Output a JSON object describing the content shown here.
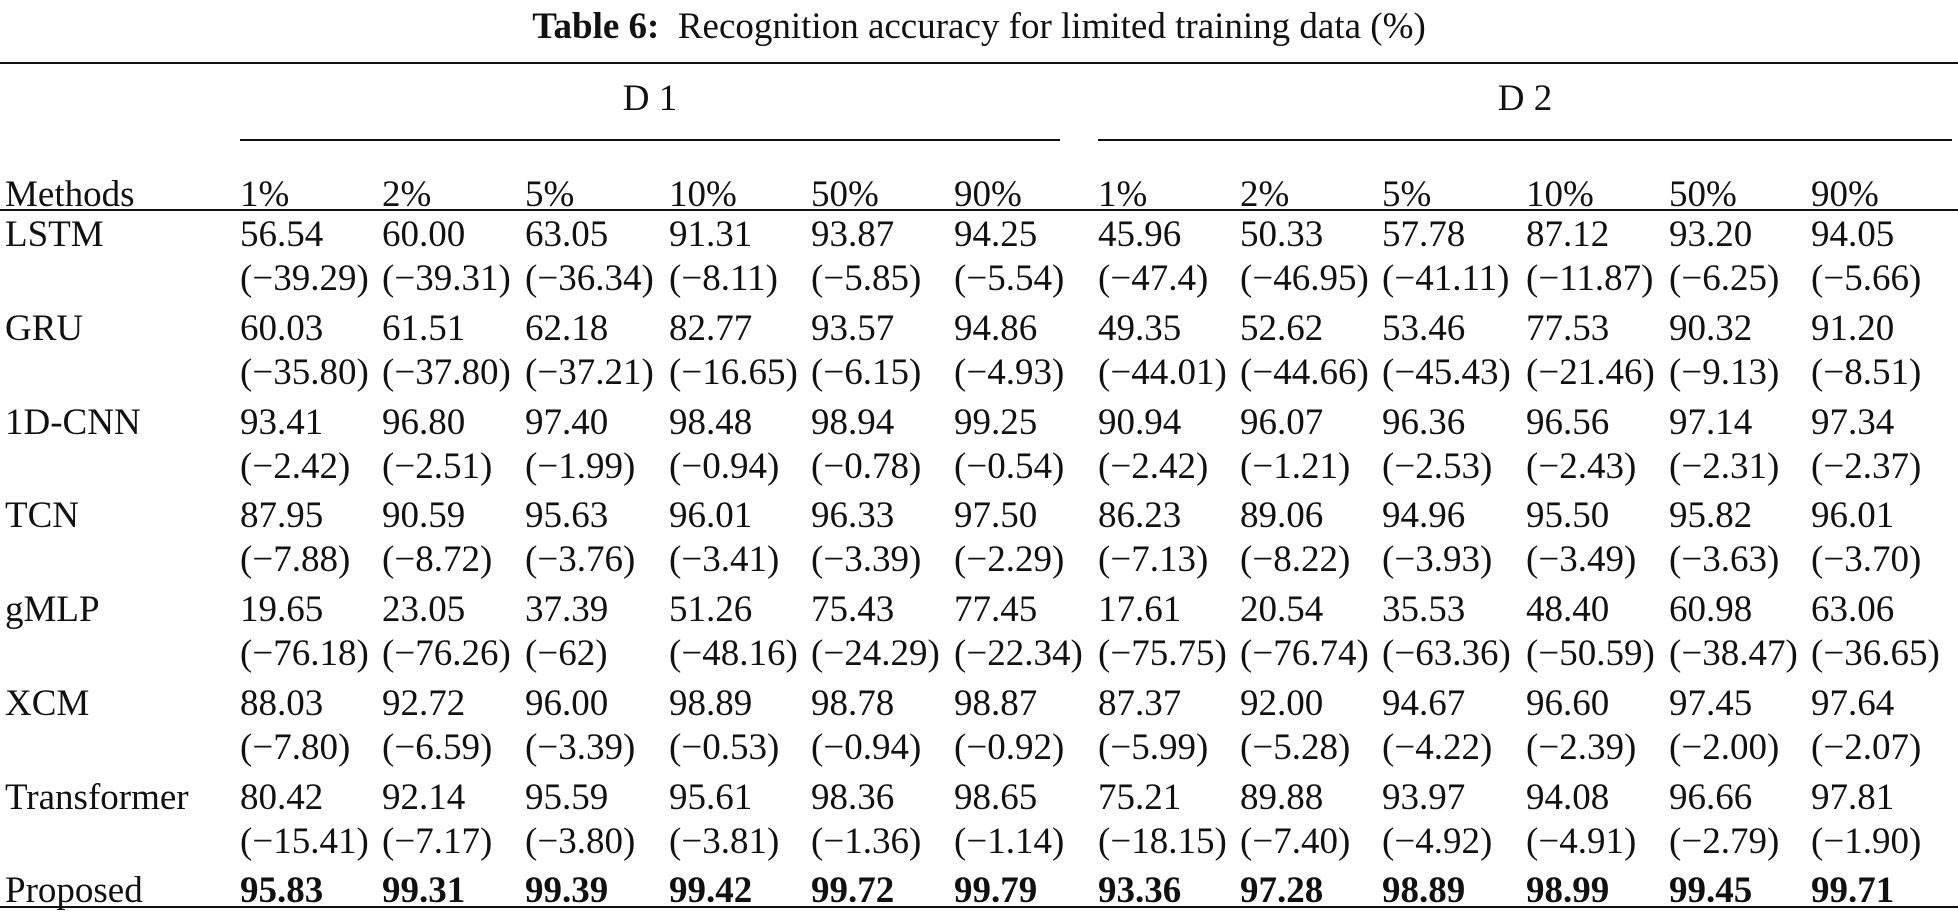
{
  "table": {
    "caption_label": "Table 6:",
    "caption_text": "Recognition accuracy for limited training data (%)",
    "groups": [
      "D 1",
      "D 2"
    ],
    "method_header": "Methods",
    "columns": [
      "1%",
      "2%",
      "5%",
      "10%",
      "50%",
      "90%",
      "1%",
      "2%",
      "5%",
      "10%",
      "50%",
      "90%"
    ],
    "rows": [
      {
        "method": "LSTM",
        "values": [
          "56.54",
          "60.00",
          "63.05",
          "91.31",
          "93.87",
          "94.25",
          "45.96",
          "50.33",
          "57.78",
          "87.12",
          "93.20",
          "94.05"
        ],
        "diffs": [
          "(−39.29)",
          "(−39.31)",
          "(−36.34)",
          "(−8.11)",
          "(−5.85)",
          "(−5.54)",
          "(−47.4)",
          "(−46.95)",
          "(−41.11)",
          "(−11.87)",
          "(−6.25)",
          "(−5.66)"
        ]
      },
      {
        "method": "GRU",
        "values": [
          "60.03",
          "61.51",
          "62.18",
          "82.77",
          "93.57",
          "94.86",
          "49.35",
          "52.62",
          "53.46",
          "77.53",
          "90.32",
          "91.20"
        ],
        "diffs": [
          "(−35.80)",
          "(−37.80)",
          "(−37.21)",
          "(−16.65)",
          "(−6.15)",
          "(−4.93)",
          "(−44.01)",
          "(−44.66)",
          "(−45.43)",
          "(−21.46)",
          "(−9.13)",
          "(−8.51)"
        ]
      },
      {
        "method": "1D-CNN",
        "values": [
          "93.41",
          "96.80",
          "97.40",
          "98.48",
          "98.94",
          "99.25",
          "90.94",
          "96.07",
          "96.36",
          "96.56",
          "97.14",
          "97.34"
        ],
        "diffs": [
          "(−2.42)",
          "(−2.51)",
          "(−1.99)",
          "(−0.94)",
          "(−0.78)",
          "(−0.54)",
          "(−2.42)",
          "(−1.21)",
          "(−2.53)",
          "(−2.43)",
          "(−2.31)",
          "(−2.37)"
        ]
      },
      {
        "method": "TCN",
        "values": [
          "87.95",
          "90.59",
          "95.63",
          "96.01",
          "96.33",
          "97.50",
          "86.23",
          "89.06",
          "94.96",
          "95.50",
          "95.82",
          "96.01"
        ],
        "diffs": [
          "(−7.88)",
          "(−8.72)",
          "(−3.76)",
          "(−3.41)",
          "(−3.39)",
          "(−2.29)",
          "(−7.13)",
          "(−8.22)",
          "(−3.93)",
          "(−3.49)",
          "(−3.63)",
          "(−3.70)"
        ]
      },
      {
        "method": "gMLP",
        "values": [
          "19.65",
          "23.05",
          "37.39",
          "51.26",
          "75.43",
          "77.45",
          "17.61",
          "20.54",
          "35.53",
          "48.40",
          "60.98",
          "63.06"
        ],
        "diffs": [
          "(−76.18)",
          "(−76.26)",
          "(−62)",
          "(−48.16)",
          "(−24.29)",
          "(−22.34)",
          "(−75.75)",
          "(−76.74)",
          "(−63.36)",
          "(−50.59)",
          "(−38.47)",
          "(−36.65)"
        ]
      },
      {
        "method": "XCM",
        "values": [
          "88.03",
          "92.72",
          "96.00",
          "98.89",
          "98.78",
          "98.87",
          "87.37",
          "92.00",
          "94.67",
          "96.60",
          "97.45",
          "97.64"
        ],
        "diffs": [
          "(−7.80)",
          "(−6.59)",
          "(−3.39)",
          "(−0.53)",
          "(−0.94)",
          "(−0.92)",
          "(−5.99)",
          "(−5.28)",
          "(−4.22)",
          "(−2.39)",
          "(−2.00)",
          "(−2.07)"
        ]
      },
      {
        "method": "Transformer",
        "values": [
          "80.42",
          "92.14",
          "95.59",
          "95.61",
          "98.36",
          "98.65",
          "75.21",
          "89.88",
          "93.97",
          "94.08",
          "96.66",
          "97.81"
        ],
        "diffs": [
          "(−15.41)",
          "(−7.17)",
          "(−3.80)",
          "(−3.81)",
          "(−1.36)",
          "(−1.14)",
          "(−18.15)",
          "(−7.40)",
          "(−4.92)",
          "(−4.91)",
          "(−2.79)",
          "(−1.90)"
        ]
      },
      {
        "method": "Proposed",
        "values": [
          "95.83",
          "99.31",
          "99.39",
          "99.42",
          "99.72",
          "99.79",
          "93.36",
          "97.28",
          "98.89",
          "98.99",
          "99.45",
          "99.71"
        ]
      }
    ]
  }
}
